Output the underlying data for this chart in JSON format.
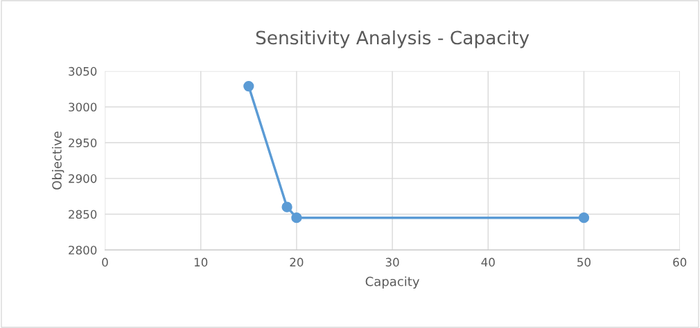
{
  "chart_data": {
    "type": "line",
    "title": "Sensitivity Analysis - Capacity",
    "xlabel": "Capacity",
    "ylabel": "Objective",
    "x": [
      15,
      19,
      20,
      50
    ],
    "series": [
      {
        "color": "#5b9bd5",
        "values": [
          3029,
          2860,
          2845,
          2845
        ]
      }
    ],
    "xlim": [
      0,
      60
    ],
    "xticks": [
      0,
      10,
      20,
      30,
      40,
      50,
      60
    ],
    "ylim": [
      2800,
      3050
    ],
    "yticks": [
      2800,
      2850,
      2900,
      2950,
      3000,
      3050
    ],
    "grid": true,
    "marker": "circle",
    "line_style": "solid"
  }
}
